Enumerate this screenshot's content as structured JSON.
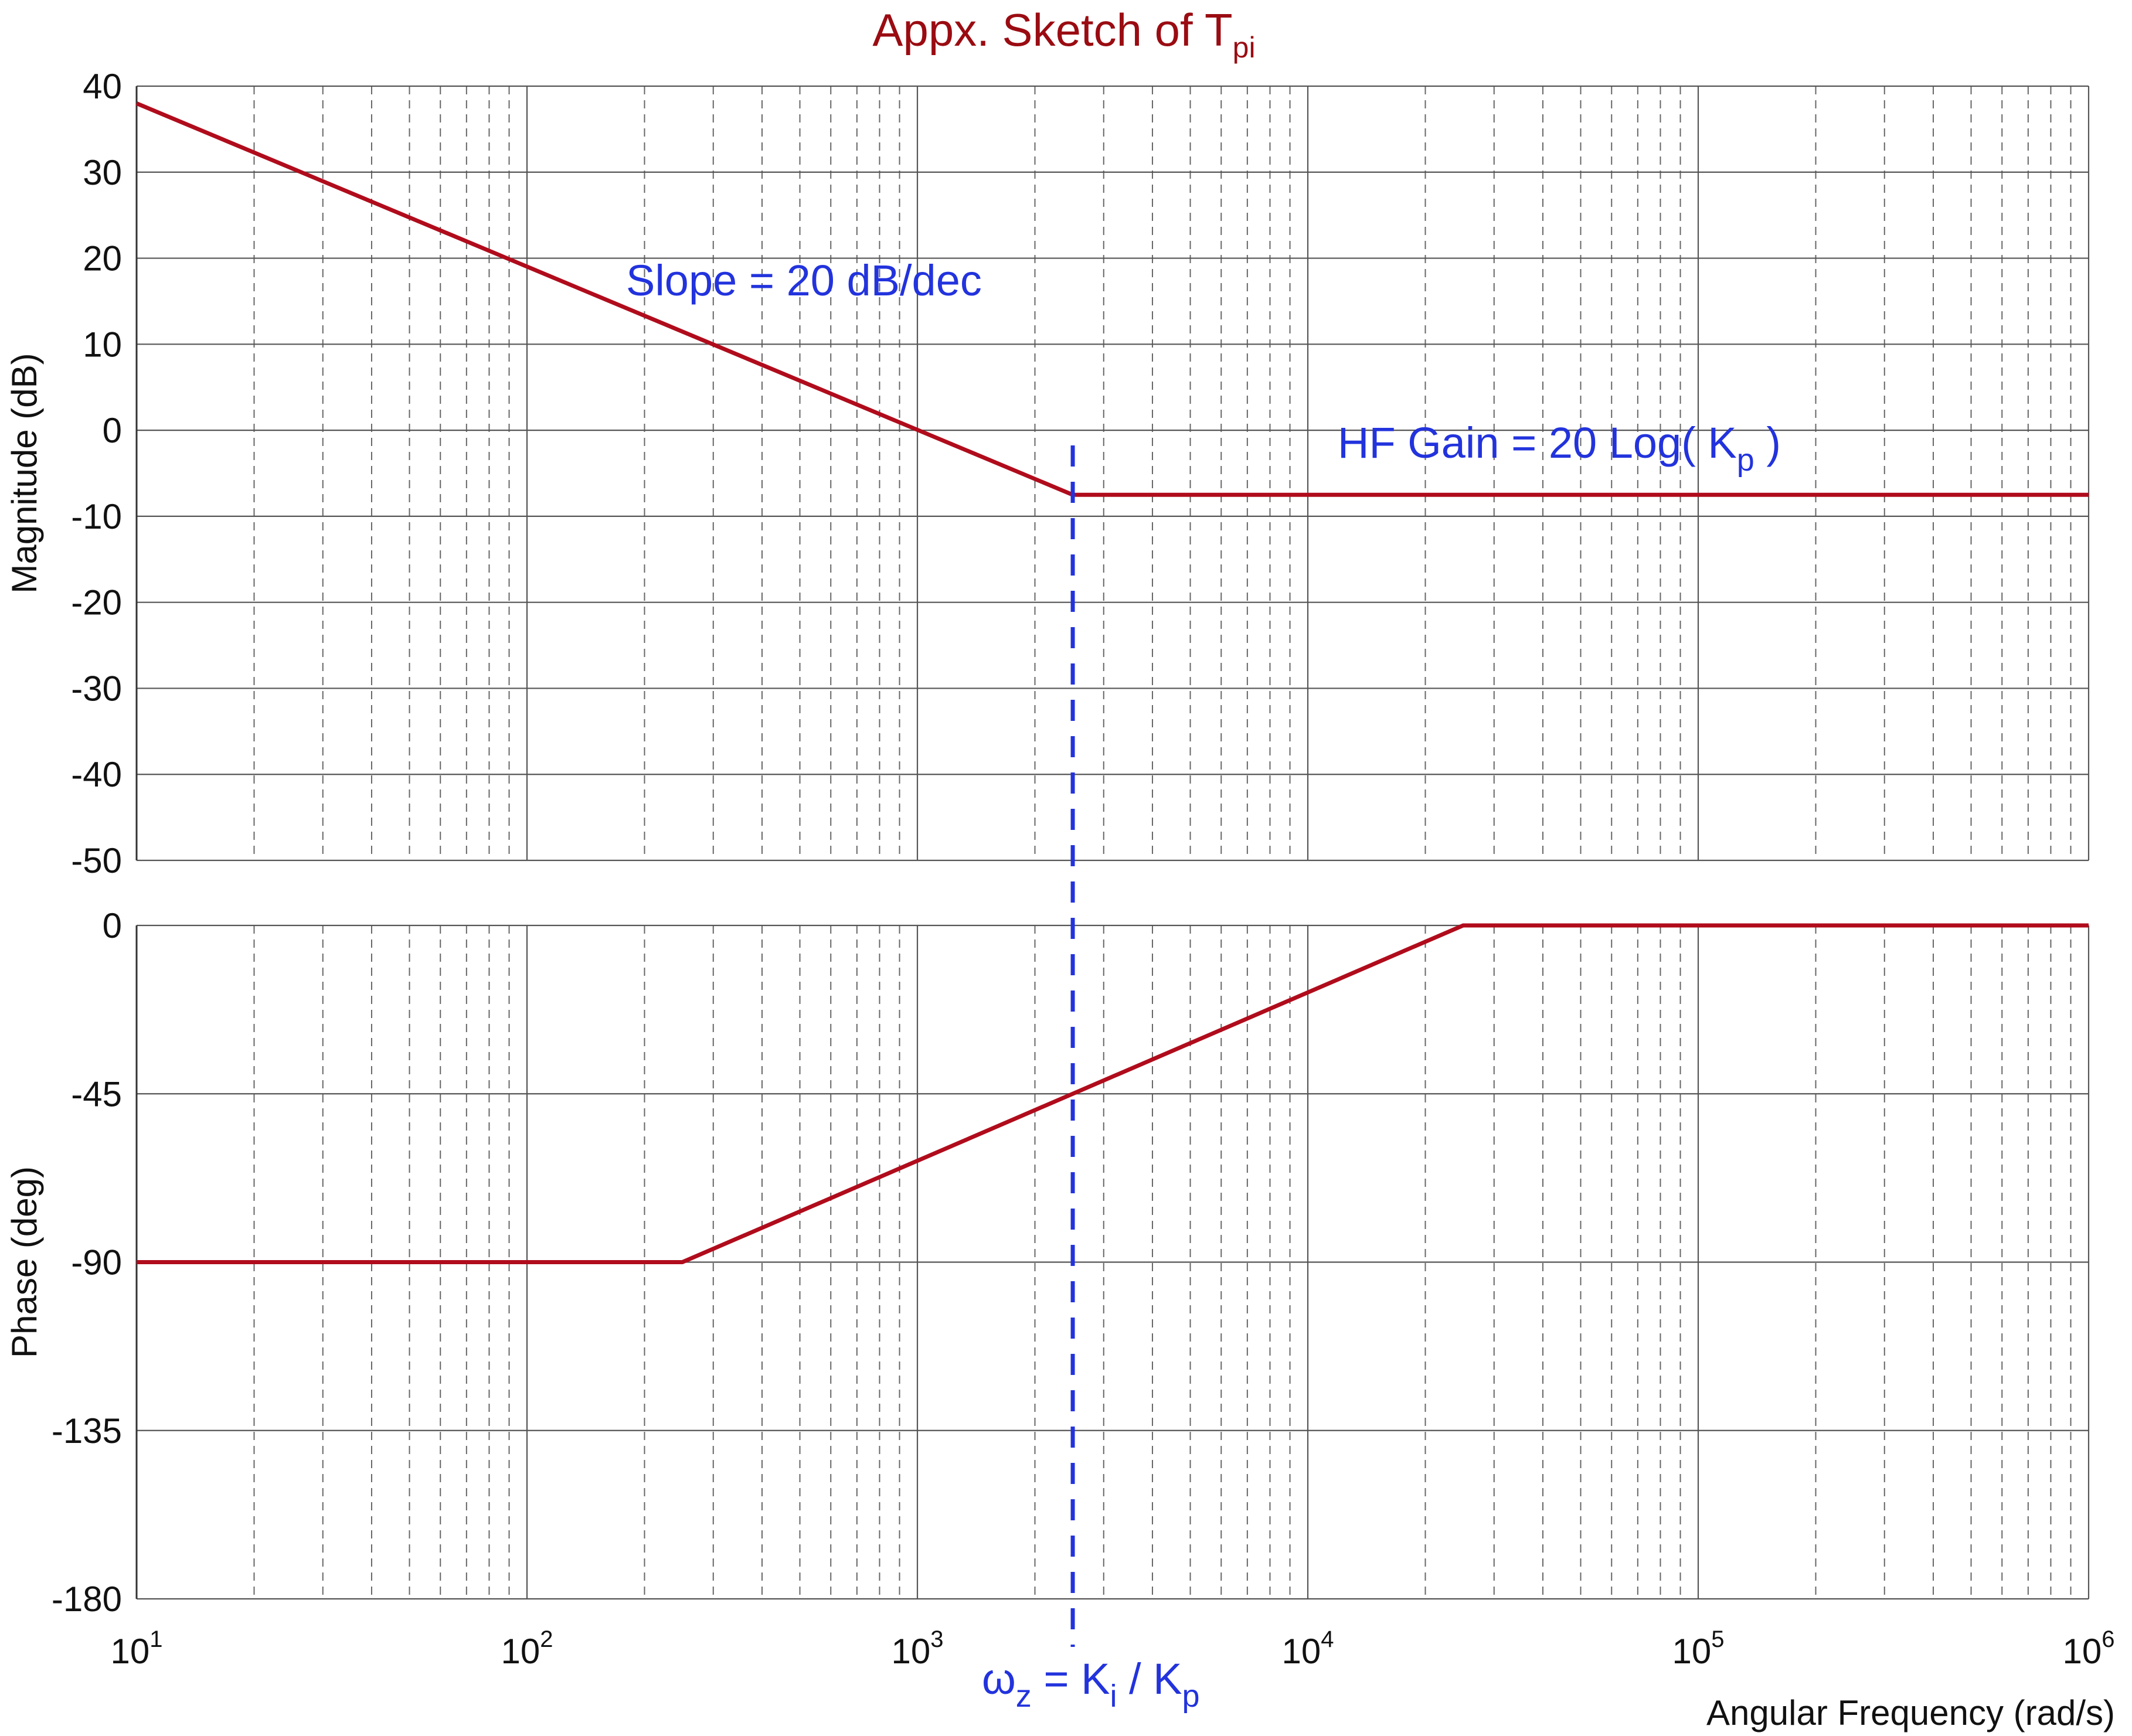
{
  "chart_data": {
    "type": "line",
    "title": {
      "main": "Appx. Sketch of T",
      "subscript": "pi"
    },
    "xlabel": "Angular Frequency (rad/s)",
    "x_scale": "log",
    "xlim": [
      10,
      1000000
    ],
    "x_ticks": [
      {
        "base": "10",
        "exp": "1"
      },
      {
        "base": "10",
        "exp": "2"
      },
      {
        "base": "10",
        "exp": "3"
      },
      {
        "base": "10",
        "exp": "4"
      },
      {
        "base": "10",
        "exp": "5"
      },
      {
        "base": "10",
        "exp": "6"
      }
    ],
    "grid": true,
    "colors": {
      "curve": "#b00c1c",
      "annotation": "#2233dd",
      "title": "#9a0c12"
    },
    "panels": [
      {
        "name": "magnitude",
        "ylabel": "Magnitude (dB)",
        "ylim": [
          -50,
          40
        ],
        "y_ticks": [
          "40",
          "30",
          "20",
          "10",
          "0",
          "-10",
          "-20",
          "-30",
          "-40",
          "-50"
        ],
        "y_tick_values": [
          40,
          30,
          20,
          10,
          0,
          -10,
          -20,
          -30,
          -40,
          -50
        ],
        "series": [
          {
            "x": [
              10,
              2500,
              1000000
            ],
            "y": [
              38,
              -7.5,
              -7.5
            ]
          }
        ]
      },
      {
        "name": "phase",
        "ylabel": "Phase (deg)",
        "ylim": [
          -180,
          0
        ],
        "y_ticks": [
          "0",
          "-45",
          "-90",
          "-135",
          "-180"
        ],
        "y_tick_values": [
          0,
          -45,
          -90,
          -135,
          -180
        ],
        "series": [
          {
            "x": [
              10,
              250,
              25000,
              1000000
            ],
            "y": [
              -90,
              -90,
              0,
              0
            ]
          }
        ]
      }
    ],
    "vline": {
      "x": 2500,
      "style": "dashed"
    },
    "annotations": {
      "slope": "Slope = 20 dB/dec",
      "hf_gain": {
        "main": "HF Gain = 20 Log( K",
        "sub": "p",
        "tail": " )"
      },
      "omega_z": {
        "w": "ω",
        "w_sub": "z",
        "eq": " = K",
        "ki_sub": "i",
        "slash": " / K",
        "kp_sub": "p"
      }
    }
  }
}
